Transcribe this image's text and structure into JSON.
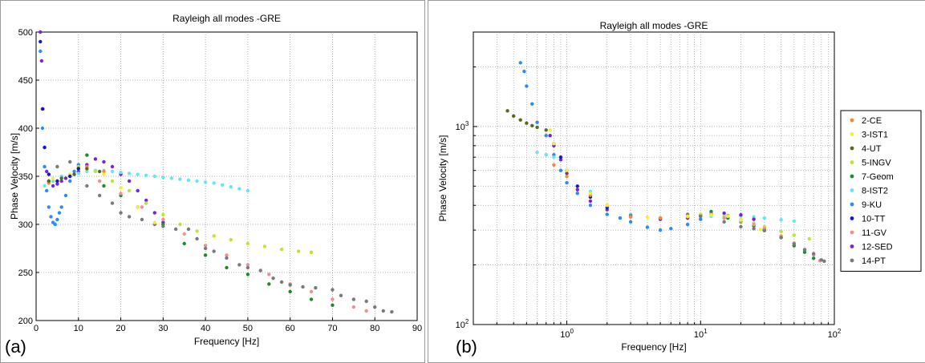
{
  "panel_labels": {
    "a": "(a)",
    "b": "(b)"
  },
  "colors": {
    "2-CE": "#f08a3c",
    "3-IST1": "#f4ee3a",
    "4-UT": "#556b1e",
    "5-INGV": "#b9e63a",
    "7-Geom": "#1e8a2c",
    "8-IST2": "#62e8f0",
    "9-KU": "#2c8cf0",
    "10-TT": "#1a1ab4",
    "11-GV": "#f09090",
    "12-SED": "#7a22d6",
    "14-PT": "#7a7a7a"
  },
  "chart_data": [
    {
      "type": "scatter",
      "title": "Rayleigh all modes -GRE",
      "xlabel": "Frequency [Hz]",
      "ylabel": "Phase Velocity [m/s]",
      "xlim": [
        0,
        90
      ],
      "ylim": [
        200,
        500
      ],
      "xscale": "linear",
      "yscale": "linear",
      "grid": true,
      "legend": "none",
      "x_ticks": [
        "0",
        "10",
        "20",
        "30",
        "40",
        "50",
        "60",
        "70",
        "80",
        "90"
      ],
      "y_ticks": [
        "200",
        "250",
        "300",
        "350",
        "400",
        "450",
        "500"
      ],
      "series": [
        {
          "name": "12-SED",
          "x": [
            1,
            1.3,
            1.6,
            2,
            2.5,
            3,
            4,
            5,
            6,
            7,
            8,
            10,
            12,
            14,
            16,
            18,
            20,
            22,
            24,
            26,
            28,
            30
          ],
          "y": [
            500,
            470,
            420,
            380,
            355,
            345,
            340,
            342,
            345,
            348,
            350,
            355,
            362,
            368,
            365,
            360,
            352,
            345,
            335,
            325,
            312,
            302
          ]
        },
        {
          "name": "9-KU",
          "x": [
            1,
            1.5,
            2,
            2.5,
            3,
            3.5,
            4,
            4.5,
            5,
            5.5,
            6,
            7,
            8,
            9,
            10
          ],
          "y": [
            480,
            400,
            360,
            335,
            318,
            308,
            302,
            300,
            305,
            312,
            318,
            330,
            345,
            355,
            362
          ]
        },
        {
          "name": "8-IST2",
          "x": [
            2,
            4,
            6,
            8,
            10,
            12,
            14,
            16,
            18,
            20,
            22,
            24,
            26,
            28,
            30,
            32,
            34,
            36,
            38,
            40,
            42,
            44,
            46,
            48,
            50
          ],
          "y": [
            340,
            345,
            350,
            352,
            353,
            355,
            356,
            356,
            355,
            354,
            353,
            352,
            351,
            350,
            349,
            348,
            347,
            346,
            345,
            344,
            343,
            341,
            339,
            337,
            335
          ]
        },
        {
          "name": "5-INGV",
          "x": [
            10,
            14,
            18,
            22,
            26,
            30,
            34,
            38,
            42,
            46,
            50,
            54,
            58,
            62,
            65
          ],
          "y": [
            360,
            355,
            345,
            335,
            322,
            310,
            300,
            293,
            288,
            284,
            280,
            277,
            274,
            272,
            271
          ]
        },
        {
          "name": "7-Geom",
          "x": [
            12,
            16,
            20,
            24,
            30,
            35,
            40,
            45,
            50,
            55,
            60,
            65,
            70
          ],
          "y": [
            372,
            340,
            330,
            318,
            300,
            280,
            268,
            255,
            248,
            238,
            230,
            222,
            216
          ]
        },
        {
          "name": "11-GV",
          "x": [
            15,
            20,
            25,
            30,
            35,
            40,
            45,
            50,
            55,
            60,
            65,
            70,
            75,
            78
          ],
          "y": [
            345,
            332,
            318,
            305,
            290,
            278,
            268,
            258,
            248,
            238,
            230,
            222,
            214,
            210
          ]
        },
        {
          "name": "14-PT",
          "x": [
            5,
            8,
            10,
            12,
            15,
            18,
            20,
            22,
            25,
            28,
            30,
            33,
            36,
            38,
            40,
            42,
            45,
            48,
            50,
            53,
            56,
            58,
            60,
            63,
            66,
            70,
            72,
            75,
            78,
            80,
            82,
            84
          ],
          "y": [
            360,
            365,
            358,
            340,
            330,
            322,
            312,
            308,
            305,
            300,
            298,
            295,
            295,
            285,
            275,
            272,
            265,
            258,
            255,
            252,
            244,
            240,
            237,
            235,
            234,
            232,
            226,
            222,
            220,
            214,
            210,
            209
          ]
        },
        {
          "name": "2-CE",
          "x": [
            3,
            5,
            8,
            12,
            16
          ],
          "y": [
            343,
            345,
            350,
            360,
            355
          ]
        },
        {
          "name": "3-IST1",
          "x": [
            4,
            8,
            12,
            16,
            20,
            24,
            28
          ],
          "y": [
            348,
            352,
            358,
            352,
            338,
            318,
            302
          ]
        },
        {
          "name": "4-UT",
          "x": [
            3,
            6,
            9,
            12,
            15
          ],
          "y": [
            345,
            348,
            352,
            358,
            355
          ]
        },
        {
          "name": "10-TT",
          "x": [
            1,
            1.5,
            2,
            3,
            5,
            8,
            10
          ],
          "y": [
            490,
            420,
            380,
            352,
            345,
            350,
            358
          ]
        }
      ]
    },
    {
      "type": "scatter",
      "title": "Rayleigh all modes -GRE",
      "xlabel": "Frequency [Hz]",
      "ylabel": "Phase Velocity [m/s]",
      "xlim": [
        0.2,
        100
      ],
      "ylim": [
        100,
        3000
      ],
      "xscale": "log",
      "yscale": "log",
      "grid": true,
      "legend": "right",
      "x_ticks": [
        "10^0",
        "10^1",
        "10^2"
      ],
      "y_ticks": [
        "10^2",
        "10^3"
      ],
      "legend_entries": [
        "2-CE",
        "3-IST1",
        "4-UT",
        "5-INGV",
        "7-Geom",
        "8-IST2",
        "9-KU",
        "10-TT",
        "11-GV",
        "12-SED",
        "14-PT"
      ],
      "series": [
        {
          "name": "4-UT",
          "x": [
            0.36,
            0.4,
            0.45,
            0.5,
            0.55,
            0.6,
            0.7
          ],
          "y": [
            1200,
            1130,
            1080,
            1040,
            1010,
            990,
            960
          ]
        },
        {
          "name": "9-KU",
          "x": [
            0.45,
            0.48,
            0.5,
            0.55,
            0.6,
            0.7,
            0.8,
            0.9,
            1,
            1.2,
            1.5,
            2,
            2.5,
            3,
            4,
            5,
            6,
            8,
            10
          ],
          "y": [
            2100,
            1900,
            1600,
            1300,
            1050,
            900,
            720,
            600,
            520,
            460,
            400,
            360,
            345,
            330,
            310,
            300,
            305,
            320,
            340
          ]
        },
        {
          "name": "8-IST2",
          "x": [
            0.6,
            0.7,
            0.8,
            1,
            1.5,
            2,
            3,
            5,
            8,
            12,
            15,
            20,
            25,
            30,
            40,
            50
          ],
          "y": [
            740,
            720,
            700,
            600,
            470,
            400,
            360,
            345,
            345,
            352,
            355,
            354,
            350,
            345,
            338,
            333
          ]
        },
        {
          "name": "12-SED",
          "x": [
            0.75,
            0.8,
            0.9,
            1,
            1.2,
            1.5,
            2,
            3,
            5,
            8,
            10,
            12,
            15,
            20,
            25,
            30
          ],
          "y": [
            900,
            800,
            680,
            580,
            480,
            420,
            380,
            350,
            340,
            345,
            352,
            362,
            365,
            358,
            340,
            305
          ]
        },
        {
          "name": "10-TT",
          "x": [
            0.8,
            0.9,
            1,
            1.2,
            1.5,
            2,
            3,
            5,
            8,
            10
          ],
          "y": [
            820,
            700,
            600,
            500,
            440,
            390,
            355,
            345,
            350,
            358
          ]
        },
        {
          "name": "5-INGV",
          "x": [
            10,
            15,
            20,
            25,
            30,
            40,
            50,
            65
          ],
          "y": [
            360,
            352,
            340,
            325,
            312,
            295,
            283,
            271
          ]
        },
        {
          "name": "7-Geom",
          "x": [
            12,
            16,
            20,
            25,
            30,
            40,
            50,
            60,
            70
          ],
          "y": [
            372,
            345,
            330,
            315,
            300,
            275,
            250,
            232,
            216
          ]
        },
        {
          "name": "11-GV",
          "x": [
            15,
            20,
            25,
            30,
            40,
            50,
            60,
            70,
            78
          ],
          "y": [
            345,
            332,
            320,
            305,
            280,
            258,
            240,
            225,
            210
          ]
        },
        {
          "name": "14-PT",
          "x": [
            3,
            5,
            8,
            10,
            15,
            20,
            25,
            30,
            40,
            50,
            60,
            70,
            80,
            84
          ],
          "y": [
            355,
            345,
            360,
            352,
            330,
            312,
            305,
            298,
            275,
            255,
            238,
            228,
            212,
            209
          ]
        },
        {
          "name": "2-CE",
          "x": [
            0.8,
            1,
            1.5,
            2,
            3,
            5,
            8,
            12,
            16
          ],
          "y": [
            640,
            560,
            450,
            400,
            350,
            345,
            350,
            360,
            355
          ]
        },
        {
          "name": "3-IST1",
          "x": [
            0.75,
            0.8,
            1,
            1.5,
            2,
            4,
            8,
            12,
            16,
            20,
            28
          ],
          "y": [
            960,
            820,
            600,
            460,
            400,
            348,
            352,
            358,
            352,
            338,
            302
          ]
        }
      ]
    }
  ]
}
